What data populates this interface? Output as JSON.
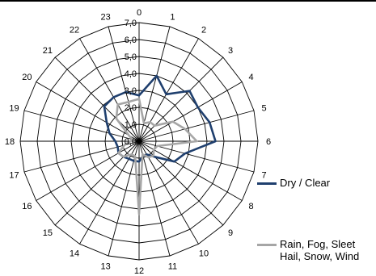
{
  "chart_data": {
    "type": "radar",
    "categories": [
      "0",
      "1",
      "2",
      "3",
      "4",
      "5",
      "6",
      "7",
      "8",
      "9",
      "10",
      "11",
      "12",
      "13",
      "14",
      "15",
      "16",
      "17",
      "18",
      "19",
      "20",
      "21",
      "22",
      "23"
    ],
    "rlim": [
      0,
      7
    ],
    "rticks": [
      "0,0",
      "1,0",
      "2,0",
      "3,0",
      "4,0",
      "5,0",
      "6,0",
      "7,0"
    ],
    "grid": true,
    "legend_position": "right",
    "series": [
      {
        "name": "Dry / Clear",
        "color": "#1f3f6e",
        "values": [
          2.7,
          4.0,
          3.2,
          4.2,
          4.0,
          4.3,
          4.5,
          2.8,
          2.4,
          1.3,
          0.9,
          0.9,
          1.2,
          1.2,
          1.2,
          1.3,
          1.4,
          1.3,
          1.4,
          1.8,
          2.2,
          2.9,
          3.0,
          3.0
        ],
        "line_width": 2.6
      },
      {
        "name": "Rain, Fog, Sleet Hail, Snow, Wind",
        "legend_lines": [
          "Rain, Fog, Sleet",
          "Hail, Snow, Wind"
        ],
        "color": "#a6a6a6",
        "values": [
          2.5,
          1.1,
          1.3,
          1.3,
          2.3,
          2.8,
          3.4,
          1.1,
          1.0,
          1.2,
          1.1,
          0.8,
          4.3,
          0.9,
          0.9,
          1.3,
          1.4,
          0.9,
          0.5,
          0.4,
          0.7,
          1.9,
          2.5,
          2.4
        ],
        "line_width": 2.6
      }
    ]
  }
}
